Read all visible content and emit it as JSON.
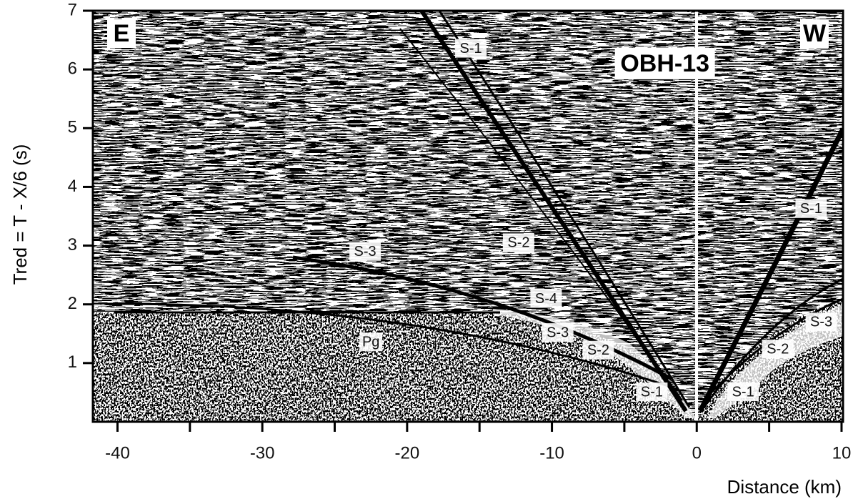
{
  "chart_data": {
    "type": "seismic-section",
    "title": "OBH-13",
    "corner_labels": [
      "E",
      "W"
    ],
    "xlabel": "Distance (km)",
    "ylabel": "Tred = T - X/6 (s)",
    "xlim": [
      -41.7,
      10.1
    ],
    "ylim": [
      0,
      7
    ],
    "xticks": [
      -40,
      -30,
      -20,
      -10,
      0,
      10
    ],
    "xminorticks": [
      -35,
      -25,
      -15,
      -5,
      5
    ],
    "yticks": [
      1,
      2,
      3,
      4,
      5,
      6,
      7
    ],
    "annotations": [
      {
        "text": "S-1",
        "x": -15.6,
        "y": 6.36
      },
      {
        "text": "S-2",
        "x": -12.3,
        "y": 3.05
      },
      {
        "text": "S-3",
        "x": -22.9,
        "y": 2.9
      },
      {
        "text": "S-4",
        "x": -10.4,
        "y": 2.1
      },
      {
        "text": "Pg",
        "x": -22.5,
        "y": 1.36
      },
      {
        "text": "S-3",
        "x": -9.6,
        "y": 1.52
      },
      {
        "text": "S-2",
        "x": -6.8,
        "y": 1.22
      },
      {
        "text": "S-1",
        "x": -3.1,
        "y": 0.51
      },
      {
        "text": "S-1",
        "x": 7.9,
        "y": 3.63
      },
      {
        "text": "S-3",
        "x": 8.6,
        "y": 1.7
      },
      {
        "text": "S-2",
        "x": 5.6,
        "y": 1.24
      },
      {
        "text": "S-1",
        "x": 3.2,
        "y": 0.51
      }
    ]
  }
}
